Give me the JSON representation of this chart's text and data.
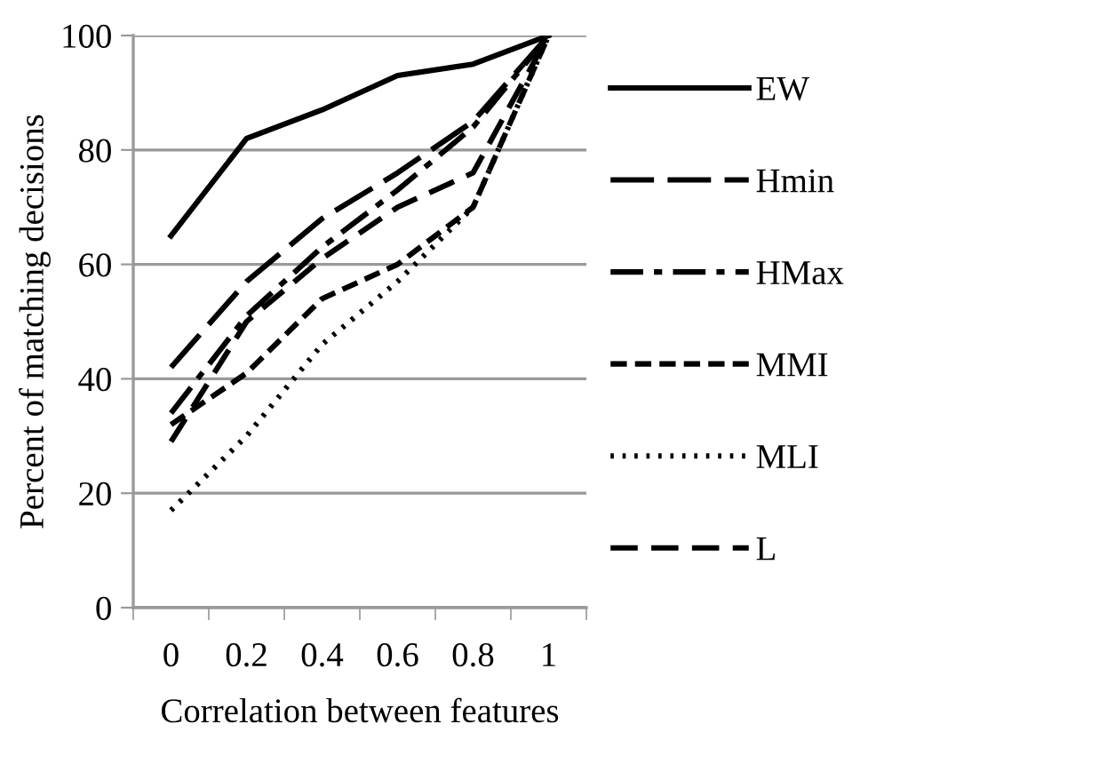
{
  "chart_data": {
    "type": "line",
    "xlabel": "Correlation between features",
    "ylabel": "Percent of matching decisions",
    "categories": [
      "0",
      "0.2",
      "0.4",
      "0.6",
      "0.8",
      "1"
    ],
    "series": [
      {
        "name": "EW",
        "color": "#000000",
        "line_style": "solid",
        "values": [
          65,
          82,
          87,
          93,
          95,
          100
        ]
      },
      {
        "name": "Hmin",
        "color": "#000000",
        "line_style": "longdash",
        "values": [
          42,
          57,
          68,
          76,
          85,
          100
        ]
      },
      {
        "name": "HMax",
        "color": "#000000",
        "line_style": "dashdot",
        "values": [
          34,
          51,
          63,
          73,
          84,
          100
        ]
      },
      {
        "name": "MMI",
        "color": "#000000",
        "line_style": "dashed",
        "values": [
          32,
          41,
          54,
          60,
          70,
          100
        ]
      },
      {
        "name": "MLI",
        "color": "#000000",
        "line_style": "dotted",
        "values": [
          17,
          30,
          46,
          57,
          70,
          100
        ]
      },
      {
        "name": "L",
        "color": "#000000",
        "line_style": "meddash",
        "values": [
          29,
          50,
          61,
          70,
          76,
          100
        ]
      }
    ],
    "ylim": [
      0,
      100
    ],
    "yticks": [
      0,
      20,
      40,
      60,
      80,
      100
    ],
    "grid": "y",
    "legend": "right",
    "marker": "none"
  }
}
